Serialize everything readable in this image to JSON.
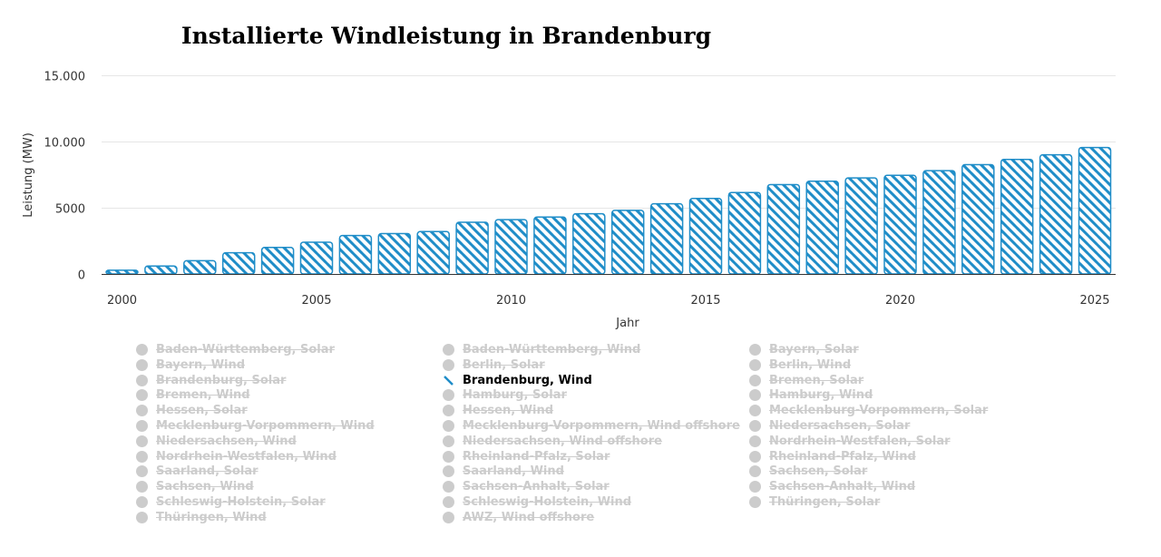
{
  "chart_data": {
    "type": "bar",
    "title": "Installierte Windleistung in Brandenburg",
    "xlabel": "Jahr",
    "ylabel": "Leistung (MW)",
    "ylim": [
      0,
      15000
    ],
    "yticks": [
      0,
      5000,
      10000,
      15000
    ],
    "ytick_labels": [
      "0",
      "5000",
      "10.000",
      "15.000"
    ],
    "xticks": [
      2000,
      2005,
      2010,
      2015,
      2020,
      2025
    ],
    "xtick_labels": [
      "2000",
      "2005",
      "2010",
      "2015",
      "2020",
      "2025"
    ],
    "categories": [
      2000,
      2001,
      2002,
      2003,
      2004,
      2005,
      2006,
      2007,
      2008,
      2009,
      2010,
      2011,
      2012,
      2013,
      2014,
      2015,
      2016,
      2017,
      2018,
      2019,
      2020,
      2021,
      2022,
      2023,
      2024,
      2025
    ],
    "series": [
      {
        "name": "Brandenburg, Wind",
        "color": "#1f8dc8",
        "pattern": "diagonal-hatch",
        "values": [
          280,
          600,
          1000,
          1600,
          2000,
          2400,
          2900,
          3050,
          3200,
          3900,
          4100,
          4300,
          4550,
          4800,
          5300,
          5700,
          6150,
          6750,
          7000,
          7250,
          7450,
          7800,
          8250,
          8650,
          9000,
          9550
        ]
      }
    ],
    "grid": true,
    "legend": {
      "placement": "bottom",
      "columns": [
        [
          "Baden-Württemberg, Solar",
          "Bayern, Wind",
          "Brandenburg, Solar",
          "Bremen, Wind",
          "Hessen, Solar",
          "Mecklenburg-Vorpommern, Wind",
          "Niedersachsen, Wind",
          "Nordrhein-Westfalen, Wind",
          "Saarland, Solar",
          "Sachsen, Wind",
          "Schleswig-Holstein, Solar",
          "Thüringen, Wind"
        ],
        [
          "Baden-Württemberg, Wind",
          "Berlin, Solar",
          "Brandenburg, Wind",
          "Hamburg, Solar",
          "Hessen, Wind",
          "Mecklenburg-Vorpommern, Wind offshore",
          "Niedersachsen, Wind offshore",
          "Rheinland-Pfalz, Solar",
          "Saarland, Wind",
          "Sachsen-Anhalt, Solar",
          "Schleswig-Holstein, Wind",
          "AWZ, Wind offshore"
        ],
        [
          "Bayern, Solar",
          "Berlin, Wind",
          "Bremen, Solar",
          "Hamburg, Wind",
          "Mecklenburg-Vorpommern, Solar",
          "Niedersachsen, Solar",
          "Nordrhein-Westfalen, Solar",
          "Rheinland-Pfalz, Wind",
          "Sachsen, Solar",
          "Sachsen-Anhalt, Wind",
          "Thüringen, Solar"
        ]
      ],
      "active": "Brandenburg, Wind",
      "inactive_color": "#cccccc"
    }
  }
}
